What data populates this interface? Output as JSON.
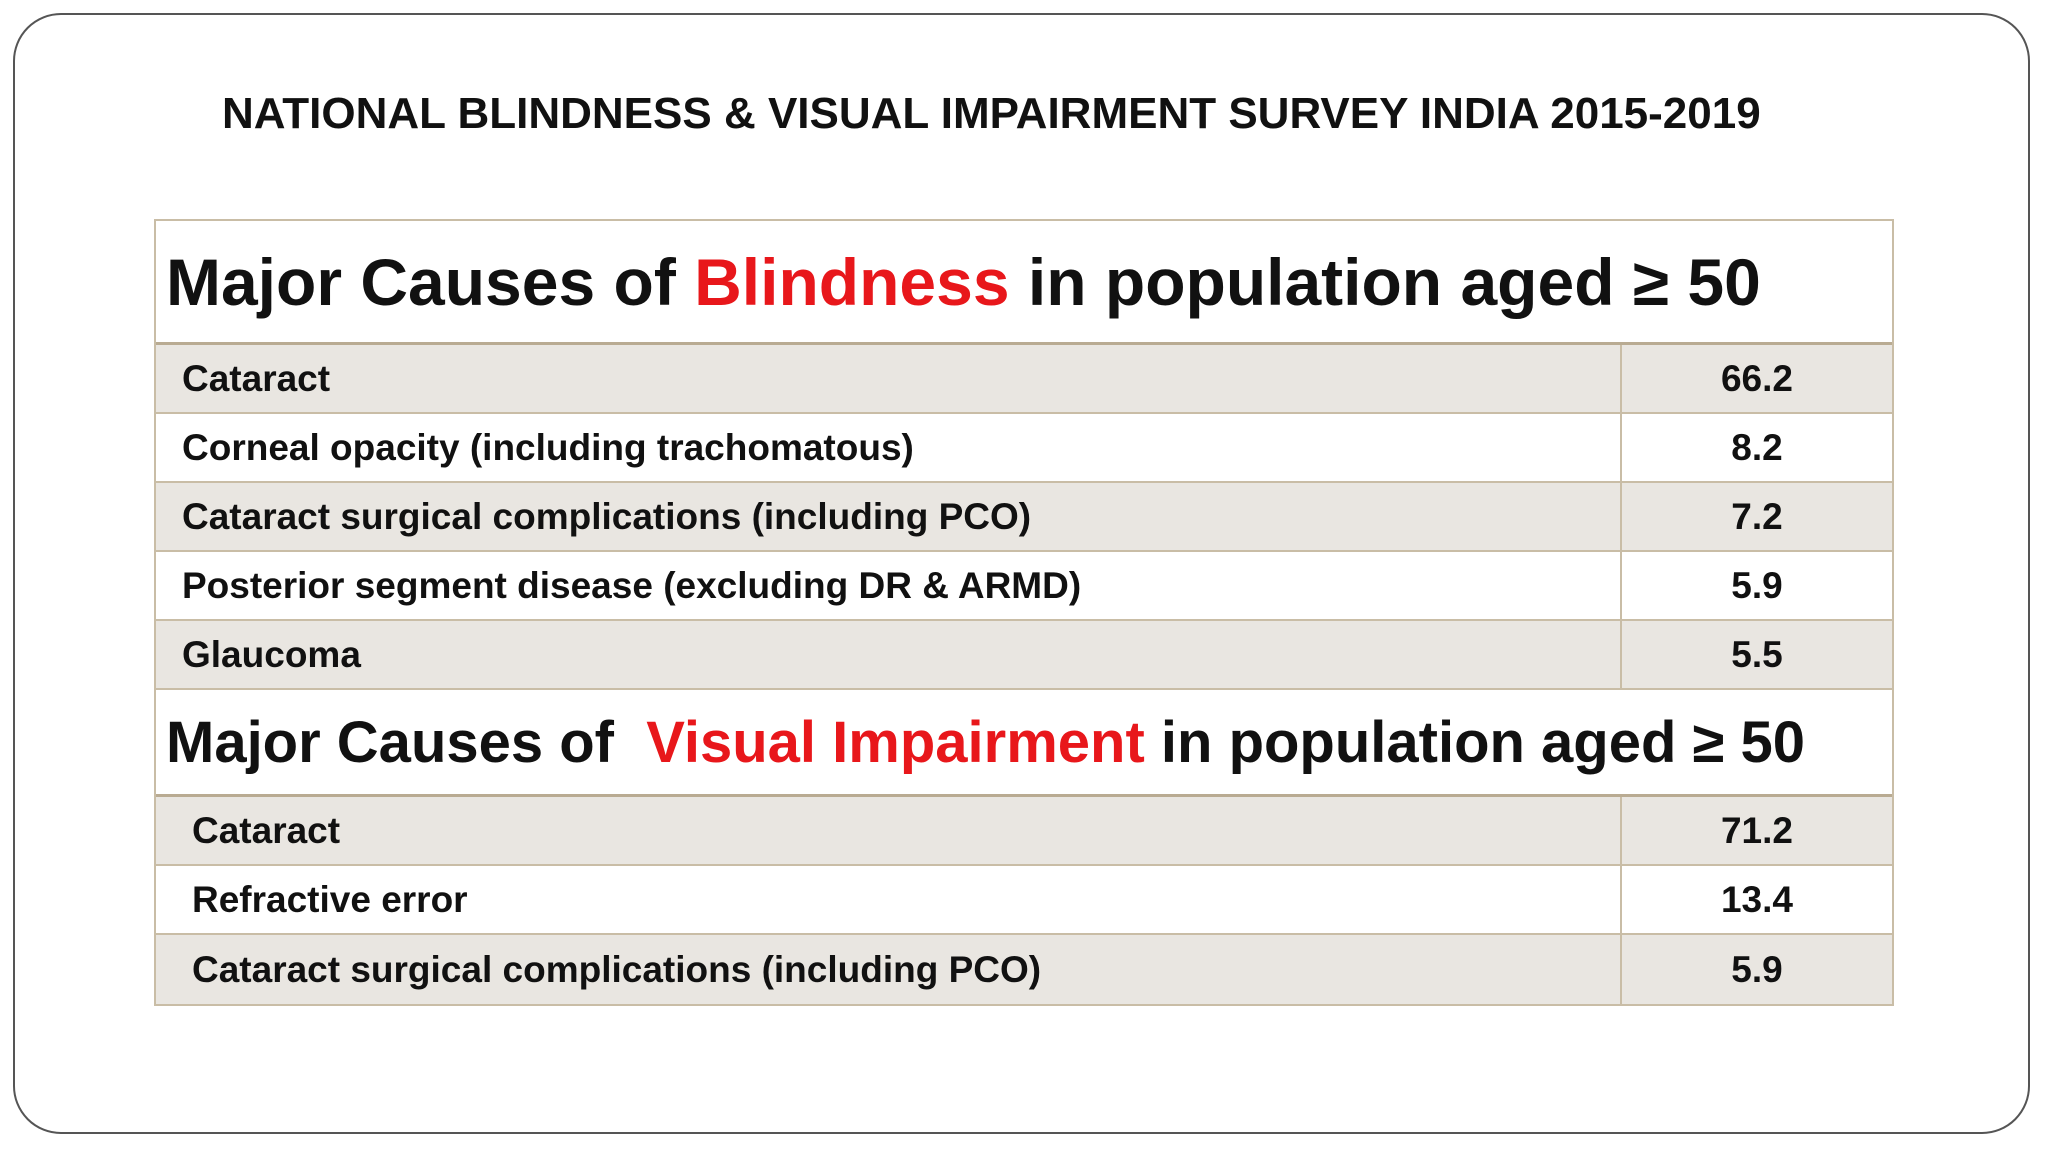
{
  "title": "NATIONAL BLINDNESS & VISUAL IMPAIRMENT SURVEY INDIA 2015-2019",
  "sections": [
    {
      "heading": {
        "before": "Major Causes of ",
        "highlight": "Blindness",
        "after": " in population aged ≥ 50"
      },
      "rows": [
        {
          "label": "Cataract",
          "value": "66.2"
        },
        {
          "label": "Corneal opacity (including trachomatous)",
          "value": "8.2"
        },
        {
          "label": "Cataract surgical complications (including PCO)",
          "value": "7.2"
        },
        {
          "label": "Posterior segment disease (excluding DR & ARMD)",
          "value": "5.9"
        },
        {
          "label": "Glaucoma",
          "value": "5.5"
        }
      ]
    },
    {
      "heading": {
        "before": "Major Causes of  ",
        "highlight": "Visual Impairment",
        "after": " in population aged ≥ 50"
      },
      "rows": [
        {
          "label": "Cataract",
          "value": "71.2"
        },
        {
          "label": "Refractive error",
          "value": "13.4"
        },
        {
          "label": "Cataract surgical complications (including PCO)",
          "value": "5.9"
        }
      ]
    }
  ]
}
